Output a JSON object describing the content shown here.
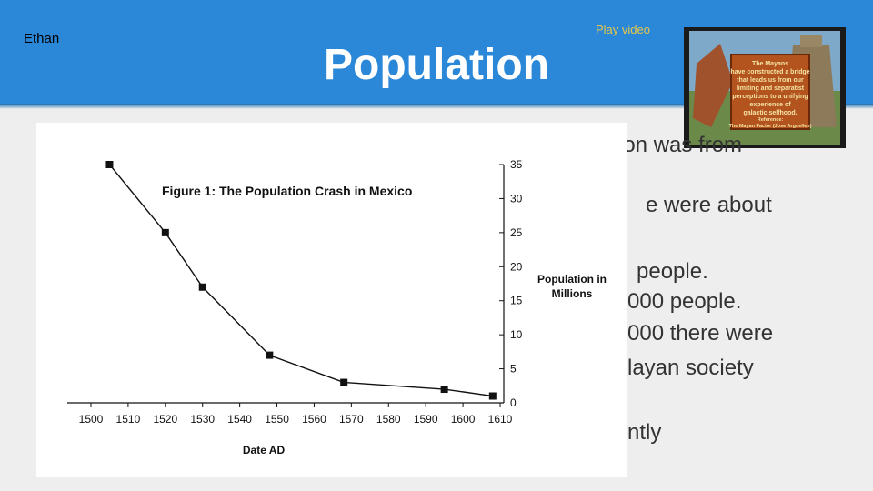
{
  "slide": {
    "author": "Ethan",
    "title": "Population",
    "play_video_label": "Play video",
    "accent_color": "#2b88d8",
    "link_color": "#e6c64a"
  },
  "video": {
    "icon": "video-thumbnail",
    "caption_lines": [
      "The Mayans",
      "have constructed a bridge",
      "that leads us from our",
      "limiting and separatist",
      "perceptions to a unifying",
      "experience of",
      "galactic selfhood."
    ],
    "credit_lines": [
      "Reference:",
      "The Mayan Factor (Jose Arguelles)"
    ]
  },
  "body_lines": [
    "ion was from",
    "e were about",
    "people.",
    "000 people.",
    "000 there were",
    "layan society",
    "ntly"
  ],
  "chart_data": {
    "type": "line",
    "title": "Figure 1: The Population Crash in Mexico",
    "xlabel": "Date AD",
    "ylabel": "Population in Millions",
    "x": [
      1505,
      1520,
      1530,
      1548,
      1568,
      1595,
      1608
    ],
    "y": [
      35,
      25,
      17,
      7,
      3,
      2,
      1
    ],
    "xlim": [
      1500,
      1610
    ],
    "ylim": [
      0,
      35
    ],
    "xticks": [
      1500,
      1510,
      1520,
      1530,
      1540,
      1550,
      1560,
      1570,
      1580,
      1590,
      1600,
      1610
    ],
    "yticks": [
      0,
      5,
      10,
      15,
      20,
      25,
      30,
      35
    ],
    "marker": "square",
    "y_axis_side": "right",
    "grid": false,
    "color": "#111111"
  }
}
